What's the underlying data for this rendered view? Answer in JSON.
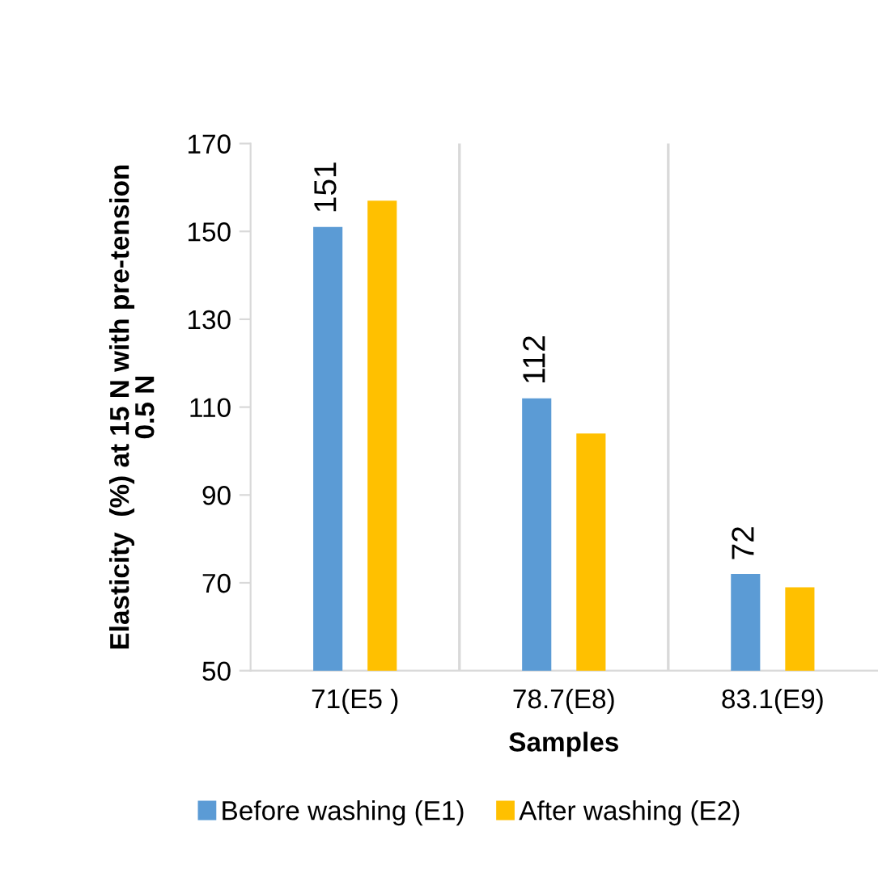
{
  "chart_data": {
    "type": "bar",
    "xlabel": "Samples",
    "ylabel": "Elasticity  (%) at 15 N with pre-tension\n0.5 N",
    "categories": [
      "71(E5 )",
      "78.7(E8)",
      "83.1(E9)"
    ],
    "series": [
      {
        "name": "Before washing (E1)",
        "color": "#5b9bd5",
        "values": [
          151,
          112,
          72
        ],
        "value_labels": [
          "151",
          "112",
          "72"
        ]
      },
      {
        "name": "After washing (E2)",
        "color": "#ffc000",
        "values": [
          157,
          104,
          69
        ]
      }
    ],
    "ylim": [
      50,
      170
    ],
    "yticks": [
      50,
      70,
      90,
      110,
      130,
      150,
      170
    ],
    "grid": "x",
    "legend": "bottom"
  }
}
